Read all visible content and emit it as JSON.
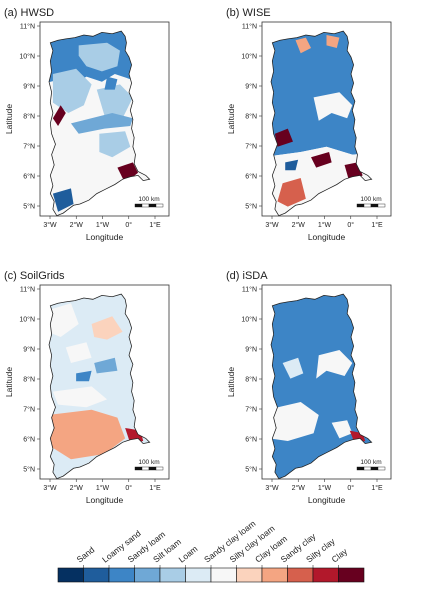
{
  "panels": [
    {
      "key": "a",
      "title": "(a) HWSD",
      "x_label": "Longitude",
      "y_label": "Latitude"
    },
    {
      "key": "b",
      "title": "(b) WISE",
      "x_label": "Longitude",
      "y_label": "Latitude"
    },
    {
      "key": "c",
      "title": "(c) SoilGrids",
      "x_label": "Longitude",
      "y_label": "Latitude"
    },
    {
      "key": "d",
      "title": "(d) iSDA",
      "x_label": "Longitude",
      "y_label": "Latitude"
    }
  ],
  "lat_ticks": [
    "11°N",
    "10°N",
    "9°N",
    "8°N",
    "7°N",
    "6°N",
    "5°N"
  ],
  "lon_ticks": [
    "3°W",
    "2°W",
    "1°W",
    "0°",
    "1°E"
  ],
  "scale_bar": "100 km",
  "legend": [
    {
      "label": "Sand",
      "color": "#053061"
    },
    {
      "label": "Loamy sand",
      "color": "#1f5d9c"
    },
    {
      "label": "Sandy loam",
      "color": "#3d85c6"
    },
    {
      "label": "Silt loam",
      "color": "#6fa8d6"
    },
    {
      "label": "Loam",
      "color": "#a9cde6"
    },
    {
      "label": "Sandy clay loam",
      "color": "#dcebf5"
    },
    {
      "label": "Silty clay loam",
      "color": "#f7f7f7"
    },
    {
      "label": "Clay loam",
      "color": "#fbd3bd"
    },
    {
      "label": "Sandy clay",
      "color": "#f4a582"
    },
    {
      "label": "Silty clay",
      "color": "#d6604d"
    },
    {
      "label": "Clay",
      "color": "#b2182b"
    },
    {
      "label": "",
      "color": "#67001f"
    }
  ]
}
